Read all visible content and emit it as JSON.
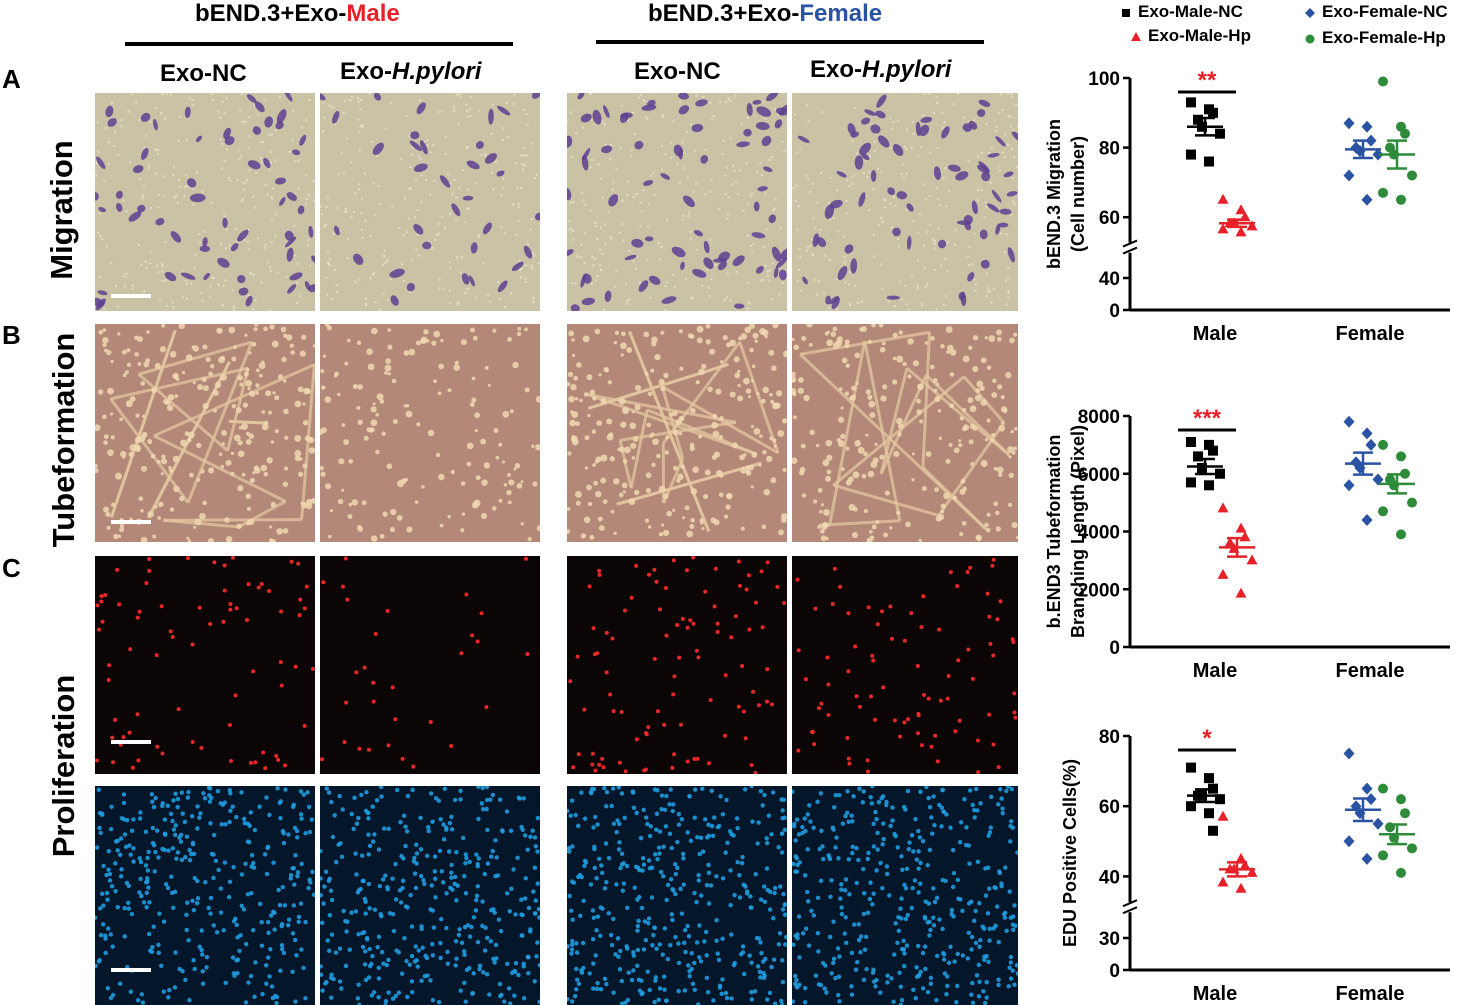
{
  "figure": {
    "group_male": {
      "prefix": "bEND.3+Exo-",
      "suffix": "Male"
    },
    "group_female": {
      "prefix": "bEND.3+Exo-",
      "suffix": "Female"
    },
    "col_nc": "Exo-NC",
    "col_hp": {
      "prefix": "Exo-",
      "suffix": "H.pylori"
    },
    "letters": [
      "A",
      "B",
      "C"
    ],
    "rows": [
      "Migration",
      "Tubeformation",
      "Proliferation"
    ],
    "colors": {
      "male": "#e8202a",
      "female": "#2a53a3",
      "nc_black": "#000000",
      "hp_red": "#e8202a",
      "fem_nc": "#2a53a3",
      "fem_hp": "#2e8b3a"
    }
  },
  "legend": [
    {
      "label": "Exo-Male-NC",
      "marker": "square",
      "color": "#000000"
    },
    {
      "label": "Exo-Female-NC",
      "marker": "diamond",
      "color": "#2a53a3"
    },
    {
      "label": "Exo-Male-Hp",
      "marker": "triangle",
      "color": "#e8202a"
    },
    {
      "label": "Exo-Female-Hp",
      "marker": "circle",
      "color": "#2e8b3a"
    }
  ],
  "chart_data": [
    {
      "type": "scatter",
      "ylabel": [
        "bEND.3 Migration",
        "(Cell number)"
      ],
      "categories": [
        "Male",
        "Female"
      ],
      "ylim": [
        0,
        100
      ],
      "yticks": [
        0,
        40,
        60,
        80,
        100
      ],
      "axis_break": true,
      "significance": "**",
      "series": [
        {
          "name": "Exo-Male-NC",
          "group": "Male",
          "values": [
            93,
            91,
            90,
            88,
            86,
            84,
            78,
            76
          ],
          "mean": 86,
          "sem": 2.5
        },
        {
          "name": "Exo-Male-Hp",
          "group": "Male",
          "values": [
            65,
            62,
            60,
            58,
            58,
            57,
            56,
            55
          ],
          "mean": 58,
          "sem": 1.2
        },
        {
          "name": "Exo-Female-NC",
          "group": "Female",
          "values": [
            87,
            86,
            82,
            80,
            79,
            78,
            72,
            65
          ],
          "mean": 79.5,
          "sem": 2.5
        },
        {
          "name": "Exo-Female-Hp",
          "group": "Female",
          "values": [
            99,
            86,
            84,
            80,
            78,
            72,
            67,
            65
          ],
          "mean": 78,
          "sem": 4
        }
      ]
    },
    {
      "type": "scatter",
      "ylabel": [
        "b.END3 Tubeformation",
        "Branching Length (Pixel)"
      ],
      "categories": [
        "Male",
        "Female"
      ],
      "ylim": [
        0,
        8000
      ],
      "yticks": [
        0,
        2000,
        4000,
        6000,
        8000
      ],
      "axis_break": false,
      "significance": "***",
      "series": [
        {
          "name": "Exo-Male-NC",
          "group": "Male",
          "values": [
            7100,
            7000,
            6800,
            6600,
            6200,
            6000,
            5700,
            5600
          ],
          "mean": 6250,
          "sem": 260
        },
        {
          "name": "Exo-Male-Hp",
          "group": "Male",
          "values": [
            4800,
            4100,
            3800,
            3600,
            3400,
            3000,
            2500,
            1850
          ],
          "mean": 3450,
          "sem": 320
        },
        {
          "name": "Exo-Female-NC",
          "group": "Female",
          "values": [
            7800,
            7400,
            7000,
            6400,
            6200,
            5800,
            5600,
            4400
          ],
          "mean": 6350,
          "sem": 380
        },
        {
          "name": "Exo-Female-Hp",
          "group": "Female",
          "values": [
            7000,
            6600,
            6000,
            5800,
            5600,
            5000,
            4700,
            3900
          ],
          "mean": 5650,
          "sem": 330
        }
      ]
    },
    {
      "type": "scatter",
      "ylabel": [
        "EDU Positive Cells(%)"
      ],
      "categories": [
        "Male",
        "Female"
      ],
      "ylim": [
        0,
        80
      ],
      "yticks": [
        0,
        30,
        40,
        60,
        80
      ],
      "axis_break": true,
      "significance": "*",
      "series": [
        {
          "name": "Exo-Male-NC",
          "group": "Male",
          "values": [
            71,
            68,
            65,
            63,
            63,
            62,
            60,
            58,
            53
          ],
          "mean": 63,
          "sem": 1.8
        },
        {
          "name": "Exo-Male-Hp",
          "group": "Male",
          "values": [
            57,
            45,
            43,
            42,
            42,
            41,
            39,
            38
          ],
          "mean": 42,
          "sem": 2
        },
        {
          "name": "Exo-Female-NC",
          "group": "Female",
          "values": [
            75,
            65,
            62,
            60,
            58,
            55,
            50,
            45
          ],
          "mean": 59,
          "sem": 3.2
        },
        {
          "name": "Exo-Female-Hp",
          "group": "Female",
          "values": [
            65,
            62,
            58,
            54,
            51,
            48,
            46,
            41
          ],
          "mean": 52,
          "sem": 2.8
        }
      ]
    }
  ]
}
